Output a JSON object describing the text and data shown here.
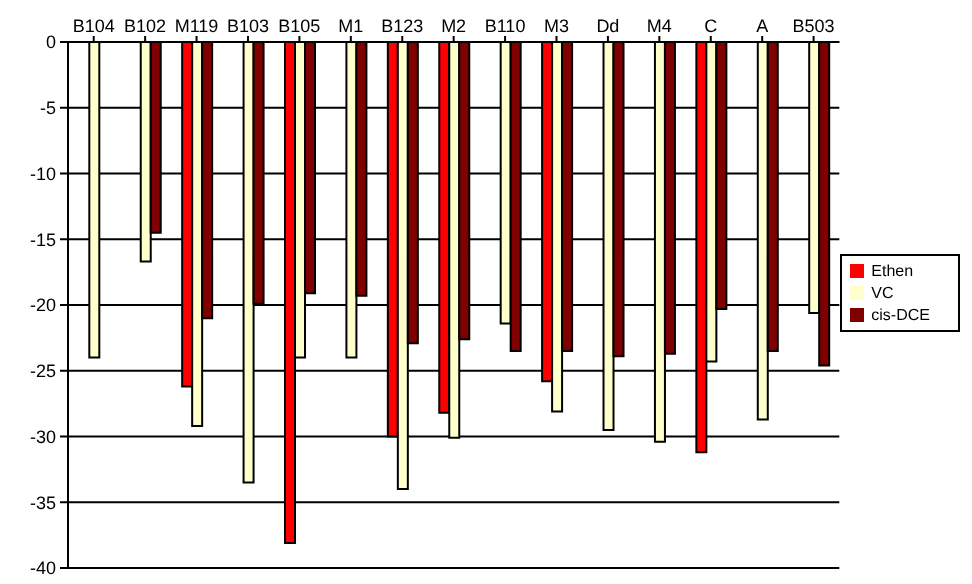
{
  "chart_data": {
    "type": "bar",
    "categories": [
      "B104",
      "B102",
      "M119",
      "B103",
      "B105",
      "M1",
      "B123",
      "M2",
      "B110",
      "M3",
      "Dd",
      "M4",
      "C",
      "A",
      "B503"
    ],
    "series": [
      {
        "name": "Ethen",
        "color": "#ff0000",
        "values": [
          null,
          null,
          -26.2,
          null,
          -38.1,
          null,
          -30.0,
          -28.2,
          null,
          -25.8,
          null,
          null,
          -31.2,
          null,
          null
        ]
      },
      {
        "name": "VC",
        "color": "#ffffcc",
        "values": [
          -24.0,
          -16.7,
          -29.2,
          -33.5,
          -24.0,
          -24.0,
          -34.0,
          -30.1,
          -21.4,
          -28.1,
          -29.5,
          -30.4,
          -24.3,
          -28.7,
          -20.6
        ]
      },
      {
        "name": "cis-DCE",
        "color": "#800000",
        "values": [
          null,
          -14.5,
          -21.0,
          -19.9,
          -19.1,
          -19.3,
          -22.9,
          -22.6,
          -23.5,
          -23.5,
          -23.9,
          -23.7,
          -20.3,
          -23.5,
          -24.6
        ]
      }
    ],
    "ylim": [
      -40,
      0
    ],
    "yticks": [
      -40,
      -35,
      -30,
      -25,
      -20,
      -15,
      -10,
      -5,
      0
    ],
    "grid": "y",
    "legend": "right"
  }
}
